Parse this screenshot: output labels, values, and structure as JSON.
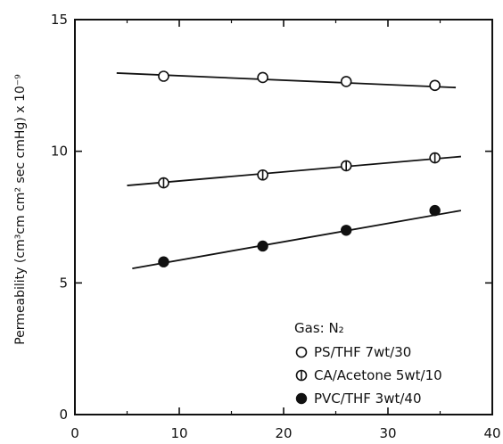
{
  "chart_data": {
    "type": "scatter",
    "title": "",
    "xlabel": "",
    "ylabel": "Permeability (cm³cm cm² sec cmHg) x 10⁻⁹",
    "xlim": [
      0,
      40
    ],
    "ylim": [
      0,
      15
    ],
    "x_ticks": [
      "0",
      "10",
      "20",
      "30",
      "40"
    ],
    "y_ticks": [
      "0",
      "5",
      "10",
      "15"
    ],
    "grid": false,
    "legend_position": "bottom-right",
    "legend_title": "Gas: N₂",
    "series": [
      {
        "name": "PS/THF 7wt/30",
        "marker": "open-circle",
        "x": [
          8.5,
          18,
          26,
          34.5
        ],
        "y": [
          12.85,
          12.8,
          12.65,
          12.5
        ],
        "fit": {
          "x": [
            4,
            36.5
          ],
          "y": [
            12.97,
            12.42
          ]
        }
      },
      {
        "name": "CA/Acetone 5wt/10",
        "marker": "circle-bar",
        "x": [
          8.5,
          18,
          26,
          34.5
        ],
        "y": [
          8.8,
          9.1,
          9.45,
          9.75
        ],
        "fit": {
          "x": [
            5,
            37
          ],
          "y": [
            8.7,
            9.8
          ]
        }
      },
      {
        "name": "PVC/THF 3wt/40",
        "marker": "filled-circle",
        "x": [
          8.5,
          18,
          26,
          34.5
        ],
        "y": [
          5.8,
          6.4,
          7.0,
          7.75
        ],
        "fit": {
          "x": [
            5.5,
            37
          ],
          "y": [
            5.55,
            7.75
          ]
        }
      }
    ]
  }
}
